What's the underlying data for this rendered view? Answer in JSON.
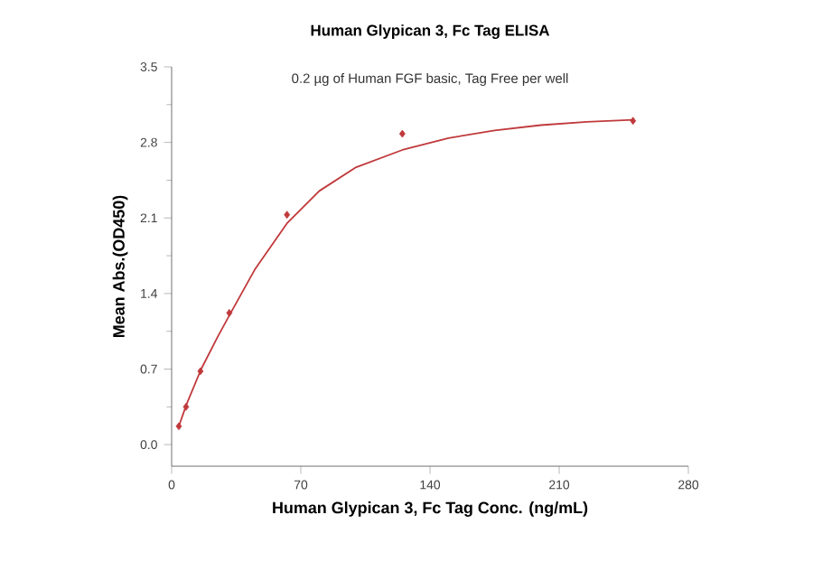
{
  "chart_data": {
    "type": "scatter",
    "title": "Human Glypican 3, Fc Tag ELISA",
    "subtitle": "0.2 µg of Human FGF basic, Tag Free per well",
    "xlabel": "Human Glypican 3, Fc Tag Conc. (ng/mL)",
    "ylabel": "Mean Abs.(OD450)",
    "series": [
      {
        "marker": "diamond",
        "color": "#c0393b",
        "x": [
          3.9,
          7.8,
          15.6,
          31.25,
          62.5,
          125,
          250
        ],
        "values": [
          0.17,
          0.35,
          0.68,
          1.22,
          2.13,
          2.88,
          3.0
        ]
      },
      {
        "type": "line",
        "marker": "none",
        "color": "#c0393b",
        "x": [
          3.9,
          8,
          16,
          25,
          32,
          45,
          62.5,
          80,
          100,
          125,
          150,
          175,
          200,
          225,
          250
        ],
        "values": [
          0.17,
          0.37,
          0.7,
          1.0,
          1.22,
          1.62,
          2.05,
          2.35,
          2.57,
          2.73,
          2.84,
          2.91,
          2.96,
          2.99,
          3.01
        ]
      }
    ],
    "xlim": [
      0,
      280
    ],
    "xticks": [
      0,
      70,
      140,
      210,
      280
    ],
    "ylim": [
      -0.2,
      3.5
    ],
    "yticks": [
      {
        "value": 0,
        "label": "0.0"
      },
      {
        "value": 0.7,
        "label": "0.7"
      },
      {
        "value": 1.4,
        "label": "1.4"
      },
      {
        "value": 2.1,
        "label": "2.1"
      },
      {
        "value": 2.8,
        "label": "2.8"
      },
      {
        "value": 3.5,
        "label": "3.5"
      }
    ]
  }
}
